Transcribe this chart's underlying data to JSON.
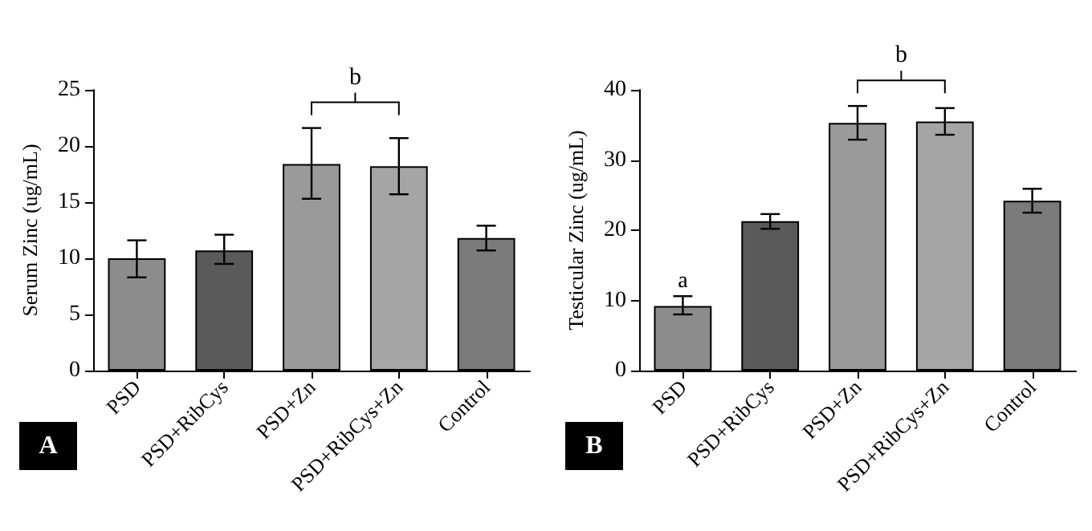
{
  "chart_data": [
    {
      "type": "bar",
      "ylabel": "Serum Zinc (ug/mL)",
      "categories": [
        "PSD",
        "PSD+RibCys",
        "PSD+Zn",
        "PSD+RibCys+Zn",
        "Control"
      ],
      "values": [
        10.0,
        10.7,
        18.4,
        18.2,
        11.8
      ],
      "colors": [
        "#8c8c8c",
        "#5a5a5a",
        "#9a9a9a",
        "#a5a5a5",
        "#7a7a7a"
      ],
      "errors": [
        [
          8.3,
          11.6
        ],
        [
          9.5,
          12.1
        ],
        [
          15.3,
          21.6
        ],
        [
          15.7,
          20.7
        ],
        [
          10.7,
          12.9
        ]
      ],
      "ylim": [
        0,
        25
      ],
      "yticks": [
        0,
        5,
        10,
        15,
        20,
        25
      ],
      "grid": false,
      "annotations": [
        "b",
        "A"
      ]
    },
    {
      "type": "bar",
      "ylabel": "Testicular Zinc (ug/mL)",
      "categories": [
        "PSD",
        "PSD+RibCys",
        "PSD+Zn",
        "PSD+RibCys+Zn",
        "Control"
      ],
      "values": [
        9.2,
        21.3,
        35.3,
        35.5,
        24.2
      ],
      "colors": [
        "#8c8c8c",
        "#5a5a5a",
        "#9a9a9a",
        "#a5a5a5",
        "#7a7a7a"
      ],
      "errors": [
        [
          8.0,
          10.6
        ],
        [
          20.2,
          22.3
        ],
        [
          32.9,
          37.7
        ],
        [
          33.6,
          37.4
        ],
        [
          22.5,
          25.9
        ]
      ],
      "ylim": [
        0,
        40
      ],
      "yticks": [
        0,
        10,
        20,
        30,
        40
      ],
      "grid": false,
      "annotations": [
        "a",
        "b",
        "B"
      ]
    }
  ]
}
